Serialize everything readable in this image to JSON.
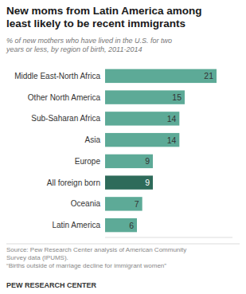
{
  "chart_data": {
    "type": "bar",
    "orientation": "horizontal",
    "title": "New moms from Latin America among\nleast likely to be recent immigrants",
    "subtitle": "% of new mothers who have lived in the U.S. for two\nyears or less, by region of birth, 2011-2014",
    "categories": [
      "Middle East-North Africa",
      "Other North America",
      "Sub-Saharan Africa",
      "Asia",
      "Europe",
      "All foreign born",
      "Oceania",
      "Latin America"
    ],
    "values": [
      21,
      15,
      14,
      14,
      9,
      9,
      7,
      6
    ],
    "colors": [
      "#5daa97",
      "#5daa97",
      "#5daa97",
      "#5daa97",
      "#5daa97",
      "#2e6b5a",
      "#5daa97",
      "#5daa97"
    ],
    "xlim": [
      0,
      24
    ],
    "data_labels": true,
    "tick_labels": "y",
    "grid": false,
    "annotations": [
      "Source: Pew Research Center analysis of American Community\nSurvey data (IPUMS).\n“Births outside of marriage decline for immigrant women”",
      "PEW RESEARCH CENTER"
    ]
  }
}
